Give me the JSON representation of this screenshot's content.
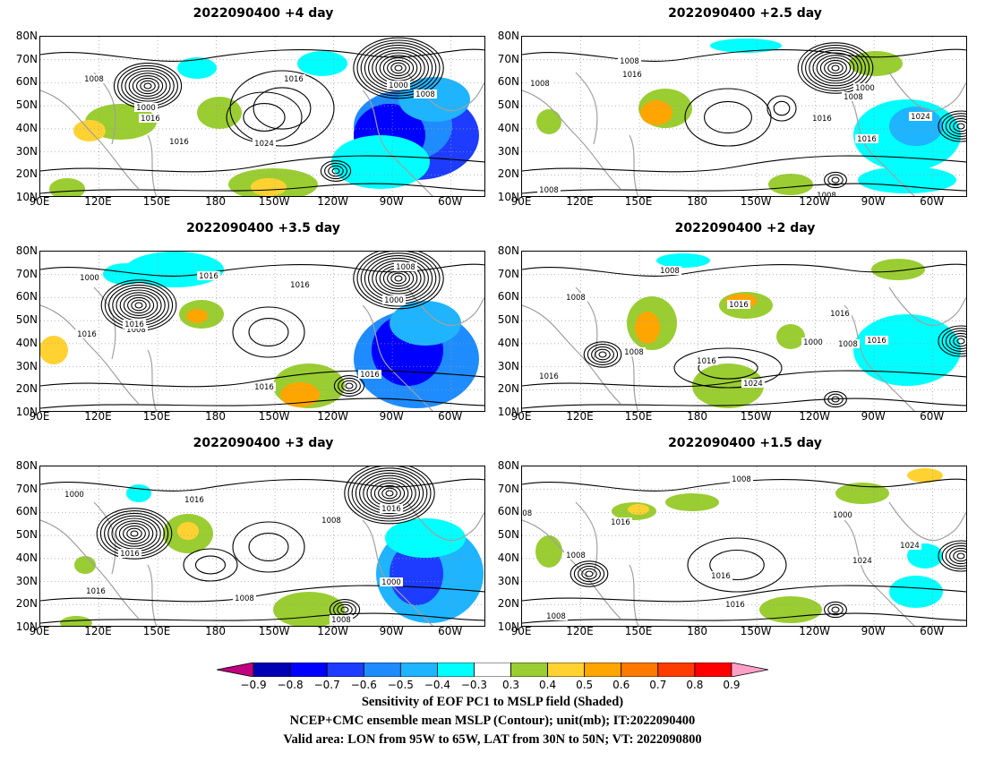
{
  "panels": [
    {
      "title": "2022090400  +4 day",
      "contour_labels": [
        "1008",
        "1000",
        "1016",
        "1016",
        "1024",
        "1016",
        "1000",
        "1008"
      ]
    },
    {
      "title": "2022090400  +2.5 day",
      "contour_labels": [
        "1008",
        "1008",
        "1016",
        "1000",
        "1008",
        "1016",
        "1024",
        "1016",
        "1008",
        "1008"
      ]
    },
    {
      "title": "2022090400  +3.5 day",
      "contour_labels": [
        "1000",
        "1016",
        "1016",
        "1008",
        "1016",
        "1000",
        "1008",
        "1016",
        "1016",
        "1016"
      ]
    },
    {
      "title": "2022090400  +2 day",
      "contour_labels": [
        "1008",
        "1008",
        "1016",
        "1016",
        "1000",
        "1008",
        "1008",
        "1016",
        "1024",
        "1016",
        "1016"
      ]
    },
    {
      "title": "2022090400  +3 day",
      "contour_labels": [
        "1000",
        "1016",
        "1008",
        "1016",
        "1016",
        "1008",
        "1016",
        "1008",
        "1000"
      ]
    },
    {
      "title": "2022090400  +1.5 day",
      "contour_labels": [
        "1008",
        "008",
        "1016",
        "1000",
        "1024",
        "1016",
        "1024",
        "1008",
        "1016",
        "1008"
      ]
    }
  ],
  "lat_ticks": [
    "80N",
    "70N",
    "60N",
    "50N",
    "40N",
    "30N",
    "20N",
    "10N"
  ],
  "lon_ticks": [
    "90E",
    "120E",
    "150E",
    "180",
    "150W",
    "120W",
    "90W",
    "60W"
  ],
  "colorbar": {
    "ticks": [
      "−0.9",
      "−0.8",
      "−0.7",
      "−0.6",
      "−0.5",
      "−0.4",
      "−0.3",
      "0.3",
      "0.4",
      "0.5",
      "0.6",
      "0.7",
      "0.8",
      "0.9"
    ],
    "colors": {
      "lt_-0.9": "#c00080",
      "-0.9_-0.8": "#0000b4",
      "-0.8_-0.7": "#0000ff",
      "-0.7_-0.6": "#1e3cff",
      "-0.6_-0.5": "#1e8cff",
      "-0.5_-0.4": "#1eb4ff",
      "-0.4_-0.3": "#00ffff",
      "-0.3_0.3": "#ffffff",
      "0.3_0.4": "#9acd32",
      "0.4_0.5": "#ffd232",
      "0.5_0.6": "#ffa500",
      "0.6_0.7": "#ff7800",
      "0.7_0.8": "#ff3c00",
      "0.8_0.9": "#ff0000",
      "gt_0.9": "#ffa0c8"
    }
  },
  "captions": [
    "Sensitivity of EOF PC1 to MSLP field (Shaded)",
    "NCEP+CMC ensemble mean MSLP (Contour); unit(mb); IT:2022090400",
    "Valid area: LON from 95W to 65W, LAT from 30N to 50N; VT: 2022090800"
  ]
}
